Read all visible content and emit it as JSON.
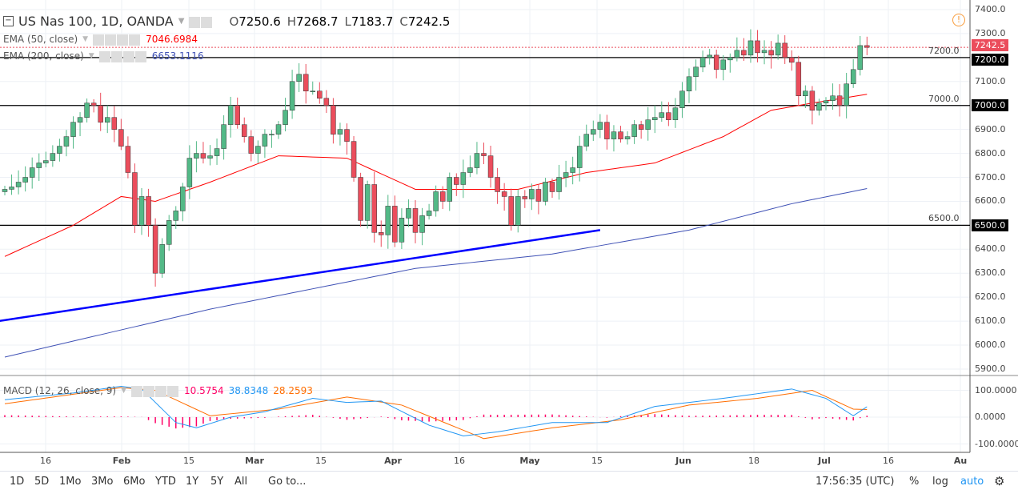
{
  "header": {
    "symbol": "US Nas 100, 1D, OANDA",
    "open_label": "O",
    "open": "7250.6",
    "high_label": "H",
    "high": "7268.7",
    "low_label": "L",
    "low": "7183.7",
    "close_label": "C",
    "close": "7242.5"
  },
  "indicators": {
    "ema50": {
      "label": "EMA (50, close)",
      "value": "7046.6984",
      "color": "#ff0000"
    },
    "ema200": {
      "label": "EMA (200, close)",
      "value": "6653.1116",
      "color": "#3f51b5"
    },
    "macd": {
      "label": "MACD (12, 26, close, 9)",
      "hist": "10.5754",
      "macd": "38.8348",
      "signal": "28.2593",
      "hist_color": "#ff0066",
      "macd_color": "#2196f3",
      "signal_color": "#ff6d00"
    }
  },
  "price_axis": {
    "ticks": [
      "7400.0",
      "7300.0",
      "7200.0",
      "7100.0",
      "7000.0",
      "6900.0",
      "6800.0",
      "6700.0",
      "6600.0",
      "6500.0",
      "6400.0",
      "6300.0",
      "6200.0",
      "6100.0",
      "6000.0",
      "5900.0"
    ],
    "current_tag": "7242.5",
    "level_tags": [
      "7200.0",
      "7000.0",
      "6500.0"
    ]
  },
  "macd_axis": {
    "ticks": [
      "100.0000",
      "0.0000",
      "-100.0000"
    ]
  },
  "date_axis": [
    "16",
    "Feb",
    "15",
    "Mar",
    "15",
    "Apr",
    "16",
    "May",
    "15",
    "Jun",
    "18",
    "Jul",
    "16",
    "Au"
  ],
  "toolbar": {
    "ranges": [
      "1D",
      "5D",
      "1Mo",
      "3Mo",
      "6Mo",
      "YTD",
      "1Y",
      "5Y",
      "All"
    ],
    "goto": "Go to...",
    "time": "17:56:35 (UTC)",
    "percent": "%",
    "log": "log",
    "auto": "auto"
  },
  "colors": {
    "up": "#53b987",
    "down": "#eb4d5c",
    "trendline": "#0000ff",
    "level": "#000000"
  },
  "chart_data": {
    "type": "candlestick",
    "ylim": [
      5900,
      7400
    ],
    "closes": [
      6650,
      6660,
      6680,
      6700,
      6740,
      6760,
      6770,
      6800,
      6830,
      6870,
      6930,
      6950,
      7010,
      7000,
      6930,
      6950,
      6900,
      6830,
      6720,
      6500,
      6620,
      6500,
      6300,
      6420,
      6520,
      6560,
      6660,
      6780,
      6800,
      6780,
      6790,
      6820,
      6920,
      7000,
      6920,
      6870,
      6800,
      6830,
      6880,
      6880,
      6920,
      6980,
      7100,
      7130,
      7060,
      7060,
      7030,
      7000,
      6880,
      6900,
      6850,
      6700,
      6520,
      6670,
      6470,
      6460,
      6580,
      6430,
      6530,
      6570,
      6470,
      6540,
      6560,
      6640,
      6600,
      6700,
      6670,
      6720,
      6740,
      6800,
      6790,
      6700,
      6640,
      6620,
      6500,
      6620,
      6610,
      6650,
      6600,
      6680,
      6640,
      6700,
      6720,
      6740,
      6830,
      6880,
      6900,
      6930,
      6860,
      6890,
      6860,
      6870,
      6920,
      6900,
      6940,
      6950,
      6970,
      6940,
      6990,
      7060,
      7120,
      7160,
      7200,
      7210,
      7150,
      7190,
      7200,
      7230,
      7210,
      7270,
      7220,
      7230,
      7210,
      7260,
      7200,
      7180,
      7040,
      7060,
      6980,
      7010,
      7020,
      7040,
      7000,
      7090,
      7150,
      7250,
      7242.5
    ],
    "ema50": [
      [
        0,
        6370
      ],
      [
        10,
        6500
      ],
      [
        17,
        6620
      ],
      [
        22,
        6600
      ],
      [
        30,
        6680
      ],
      [
        40,
        6790
      ],
      [
        50,
        6780
      ],
      [
        60,
        6650
      ],
      [
        75,
        6650
      ],
      [
        85,
        6720
      ],
      [
        95,
        6760
      ],
      [
        105,
        6870
      ],
      [
        112,
        6980
      ],
      [
        118,
        7010
      ],
      [
        126,
        7046.7
      ]
    ],
    "ema200": [
      [
        0,
        5950
      ],
      [
        30,
        6150
      ],
      [
        60,
        6320
      ],
      [
        80,
        6380
      ],
      [
        100,
        6480
      ],
      [
        115,
        6590
      ],
      [
        126,
        6653.1
      ]
    ],
    "macd": [
      [
        0,
        65
      ],
      [
        10,
        90
      ],
      [
        17,
        115
      ],
      [
        20,
        105
      ],
      [
        25,
        -20
      ],
      [
        28,
        -40
      ],
      [
        33,
        0
      ],
      [
        38,
        20
      ],
      [
        45,
        70
      ],
      [
        50,
        55
      ],
      [
        55,
        60
      ],
      [
        62,
        -30
      ],
      [
        67,
        -70
      ],
      [
        72,
        -55
      ],
      [
        80,
        -20
      ],
      [
        88,
        -20
      ],
      [
        95,
        40
      ],
      [
        105,
        70
      ],
      [
        115,
        105
      ],
      [
        120,
        70
      ],
      [
        124,
        5
      ],
      [
        126,
        38.8
      ]
    ],
    "signal": [
      [
        0,
        50
      ],
      [
        17,
        110
      ],
      [
        22,
        100
      ],
      [
        30,
        5
      ],
      [
        40,
        30
      ],
      [
        50,
        75
      ],
      [
        58,
        45
      ],
      [
        70,
        -80
      ],
      [
        80,
        -40
      ],
      [
        90,
        -10
      ],
      [
        100,
        45
      ],
      [
        110,
        70
      ],
      [
        118,
        100
      ],
      [
        124,
        30
      ],
      [
        126,
        28.3
      ]
    ],
    "levels": [
      7200,
      7000,
      6500
    ],
    "trendline": [
      [
        -1,
        6100
      ],
      [
        87,
        6480
      ]
    ]
  }
}
